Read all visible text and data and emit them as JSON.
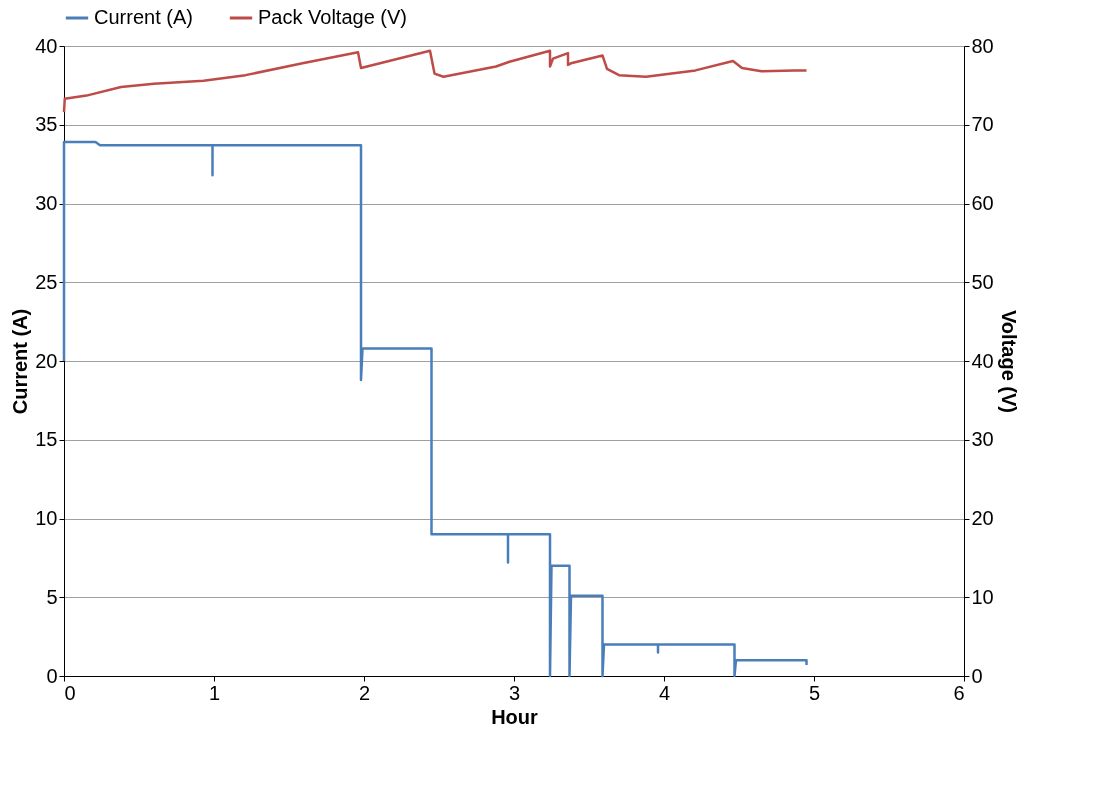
{
  "chart_data": {
    "type": "line",
    "xlabel": "Hour",
    "ylabel": "Current (A)",
    "y2label": "Voltage (V)",
    "xlim": [
      0,
      6
    ],
    "xticks": [
      0,
      1,
      2,
      3,
      4,
      5,
      6
    ],
    "ylim": [
      0,
      40
    ],
    "yticks": [
      0,
      5,
      10,
      15,
      20,
      25,
      30,
      35,
      40
    ],
    "y2lim": [
      0,
      80
    ],
    "y2ticks": [
      0,
      10,
      20,
      30,
      40,
      50,
      60,
      70,
      80
    ],
    "grid": "y",
    "legend": "top",
    "marker": "none",
    "line_style": "solid",
    "series": [
      {
        "name": "Current (A)",
        "color": "#4a7ebb",
        "x": [
          0,
          0,
          0.21,
          0.24,
          0.99,
          0.99,
          0.99,
          1.98,
          1.98,
          1.99,
          2.45,
          2.45,
          2.96,
          2.96,
          2.96,
          3.24,
          3.24,
          3.25,
          3.37,
          3.37,
          3.38,
          3.59,
          3.59,
          3.6,
          3.96,
          3.96,
          3.96,
          4.47,
          4.47,
          4.48,
          4.95,
          4.95
        ],
        "values": [
          20,
          33.9,
          33.9,
          33.7,
          33.7,
          31.8,
          33.7,
          33.7,
          18.8,
          20.8,
          20.8,
          9.0,
          9.0,
          7.2,
          9.0,
          9.0,
          0,
          7.0,
          7.0,
          0,
          5.1,
          5.1,
          0,
          2.0,
          2.0,
          1.5,
          2.0,
          2.0,
          0,
          1.0,
          1.0,
          0.7
        ]
      },
      {
        "name": "Pack Voltage (V)",
        "color": "#be4b48",
        "axis": "y2",
        "x": [
          0,
          0.005,
          0.15,
          0.38,
          0.6,
          0.93,
          1.21,
          1.59,
          1.96,
          1.98,
          2.44,
          2.47,
          2.53,
          2.88,
          2.97,
          3.24,
          3.24,
          3.26,
          3.36,
          3.36,
          3.38,
          3.59,
          3.62,
          3.7,
          3.88,
          4.21,
          4.46,
          4.52,
          4.65,
          4.87,
          4.95
        ],
        "values": [
          71.6,
          73.3,
          73.7,
          74.8,
          75.2,
          75.6,
          76.3,
          77.8,
          79.2,
          77.2,
          79.4,
          76.5,
          76.1,
          77.4,
          78.0,
          79.4,
          77.4,
          78.4,
          79.1,
          77.6,
          77.8,
          78.8,
          77.1,
          76.3,
          76.1,
          76.9,
          78.1,
          77.2,
          76.8,
          76.9,
          76.9
        ]
      }
    ]
  }
}
